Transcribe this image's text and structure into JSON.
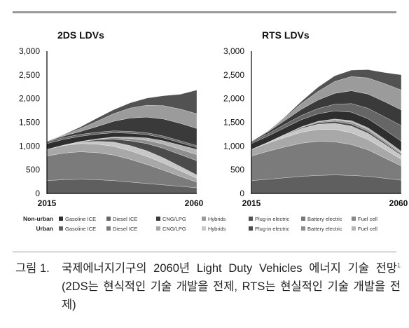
{
  "chart_data": [
    {
      "type": "area",
      "stacked": true,
      "title": "2DS LDVs",
      "x": [
        2015,
        2020,
        2025,
        2030,
        2035,
        2040,
        2045,
        2050,
        2055,
        2060
      ],
      "x_tick_labels": [
        "2015",
        "2060"
      ],
      "ylim": [
        0,
        3000
      ],
      "y_ticks": [
        "0",
        "500",
        "1,000",
        "1,500",
        "2,000",
        "2,500",
        "3,000"
      ],
      "grid": false,
      "series": [
        {
          "name": "Urban Gasoline ICE",
          "color": "#5f5f5f",
          "values": [
            270,
            290,
            300,
            290,
            270,
            240,
            210,
            180,
            150,
            120
          ]
        },
        {
          "name": "Urban Diesel ICE",
          "color": "#7b7b7b",
          "values": [
            520,
            560,
            580,
            570,
            540,
            480,
            400,
            310,
            210,
            120
          ]
        },
        {
          "name": "Urban CNG/LPG",
          "color": "#a8a8a8",
          "values": [
            140,
            160,
            170,
            180,
            185,
            180,
            170,
            150,
            120,
            80
          ]
        },
        {
          "name": "Urban Hybrids",
          "color": "#c7c7c7",
          "values": [
            0,
            10,
            30,
            60,
            90,
            110,
            120,
            110,
            90,
            70
          ]
        },
        {
          "name": "Urban Plug-in electric",
          "color": "#4b4b4b",
          "values": [
            0,
            0,
            10,
            30,
            60,
            100,
            150,
            200,
            250,
            300
          ]
        },
        {
          "name": "Urban Battery electric",
          "color": "#8e8e8e",
          "values": [
            0,
            0,
            5,
            15,
            30,
            50,
            70,
            90,
            110,
            130
          ]
        },
        {
          "name": "Urban Fuel cell",
          "color": "#b5b5b5",
          "values": [
            0,
            0,
            0,
            5,
            15,
            30,
            50,
            70,
            90,
            110
          ]
        },
        {
          "name": "Non-urban Gasoline ICE",
          "color": "#2e2e2e",
          "values": [
            120,
            120,
            110,
            100,
            90,
            80,
            70,
            60,
            50,
            40
          ]
        },
        {
          "name": "Non-urban Diesel ICE",
          "color": "#666666",
          "values": [
            40,
            40,
            40,
            40,
            40,
            40,
            40,
            40,
            40,
            40
          ]
        },
        {
          "name": "Non-urban CNG/LPG",
          "color": "#3a3a3a",
          "values": [
            10,
            30,
            60,
            120,
            200,
            280,
            330,
            360,
            370,
            360
          ]
        },
        {
          "name": "Non-urban Hybrids",
          "color": "#9b9b9b",
          "values": [
            0,
            20,
            60,
            110,
            160,
            210,
            250,
            280,
            300,
            310
          ]
        },
        {
          "name": "Non-urban Plug-in electric",
          "color": "#525252",
          "values": [
            0,
            10,
            35,
            65,
            85,
            110,
            150,
            210,
            310,
            500
          ]
        }
      ]
    },
    {
      "type": "area",
      "stacked": true,
      "title": "RTS LDVs",
      "x": [
        2015,
        2020,
        2025,
        2030,
        2035,
        2040,
        2045,
        2050,
        2055,
        2060
      ],
      "x_tick_labels": [
        "2015",
        "2060"
      ],
      "ylim": [
        0,
        3000
      ],
      "y_ticks": [
        "0",
        "500",
        "1,000",
        "1,500",
        "2,000",
        "2,500",
        "3,000"
      ],
      "grid": false,
      "series": [
        {
          "name": "Urban Gasoline ICE",
          "color": "#5f5f5f",
          "values": [
            270,
            300,
            330,
            360,
            380,
            390,
            380,
            360,
            320,
            280
          ]
        },
        {
          "name": "Urban Diesel ICE",
          "color": "#7b7b7b",
          "values": [
            520,
            590,
            650,
            700,
            720,
            700,
            650,
            560,
            430,
            300
          ]
        },
        {
          "name": "Urban CNG/LPG",
          "color": "#a8a8a8",
          "values": [
            140,
            170,
            200,
            230,
            250,
            260,
            250,
            220,
            180,
            140
          ]
        },
        {
          "name": "Urban Hybrids",
          "color": "#c7c7c7",
          "values": [
            0,
            20,
            50,
            80,
            110,
            130,
            140,
            130,
            110,
            80
          ]
        },
        {
          "name": "Urban Plug-in electric",
          "color": "#4b4b4b",
          "values": [
            0,
            0,
            10,
            20,
            30,
            40,
            45,
            40,
            30,
            20
          ]
        },
        {
          "name": "Urban Battery electric",
          "color": "#8e8e8e",
          "values": [
            0,
            0,
            5,
            10,
            20,
            30,
            40,
            40,
            35,
            30
          ]
        },
        {
          "name": "Urban Fuel cell",
          "color": "#b5b5b5",
          "values": [
            0,
            0,
            0,
            5,
            10,
            20,
            30,
            35,
            40,
            40
          ]
        },
        {
          "name": "Non-urban Gasoline ICE",
          "color": "#2e2e2e",
          "values": [
            120,
            130,
            140,
            150,
            160,
            170,
            180,
            190,
            200,
            210
          ]
        },
        {
          "name": "Non-urban Diesel ICE",
          "color": "#666666",
          "values": [
            40,
            50,
            70,
            90,
            110,
            140,
            180,
            220,
            270,
            330
          ]
        },
        {
          "name": "Non-urban CNG/LPG",
          "color": "#3a3a3a",
          "values": [
            10,
            40,
            80,
            130,
            180,
            230,
            270,
            300,
            320,
            330
          ]
        },
        {
          "name": "Non-urban Hybrids",
          "color": "#9b9b9b",
          "values": [
            0,
            20,
            60,
            120,
            180,
            250,
            300,
            340,
            380,
            420
          ]
        },
        {
          "name": "Non-urban Plug-in electric",
          "color": "#525252",
          "values": [
            0,
            0,
            15,
            45,
            90,
            120,
            135,
            175,
            235,
            320
          ]
        }
      ]
    }
  ],
  "legend": {
    "rows": [
      {
        "header": "Non-urban",
        "items": [
          {
            "label": "Gasoline ICE",
            "color": "#2e2e2e"
          },
          {
            "label": "Diesel ICE",
            "color": "#666666"
          },
          {
            "label": "CNG/LPG",
            "color": "#3a3a3a"
          },
          {
            "label": "Hybrids",
            "color": "#9b9b9b"
          },
          {
            "label": "Plug-in electric",
            "color": "#525252"
          },
          {
            "label": "Battery electric",
            "color": "#777777"
          },
          {
            "label": "Fuel cell",
            "color": "#888888"
          }
        ]
      },
      {
        "header": "Urban",
        "items": [
          {
            "label": "Gasoline ICE",
            "color": "#5f5f5f"
          },
          {
            "label": "Diesel ICE",
            "color": "#7b7b7b"
          },
          {
            "label": "CNG/LPG",
            "color": "#a8a8a8"
          },
          {
            "label": "Hybrids",
            "color": "#c7c7c7"
          },
          {
            "label": "Plug-in electric",
            "color": "#4b4b4b"
          },
          {
            "label": "Battery electric",
            "color": "#8e8e8e"
          },
          {
            "label": "Fuel cell",
            "color": "#b5b5b5"
          }
        ]
      }
    ]
  },
  "caption": {
    "label": "그림 1.",
    "text_before": "국제에너지기구의 2060년 Light Duty Vehicles 에너지 기술 전망",
    "footnote": "1",
    "text_after": " (2DS는 현식적인 기술 개발을 전제, RTS는 현실적인 기술 개발을 전제)"
  }
}
